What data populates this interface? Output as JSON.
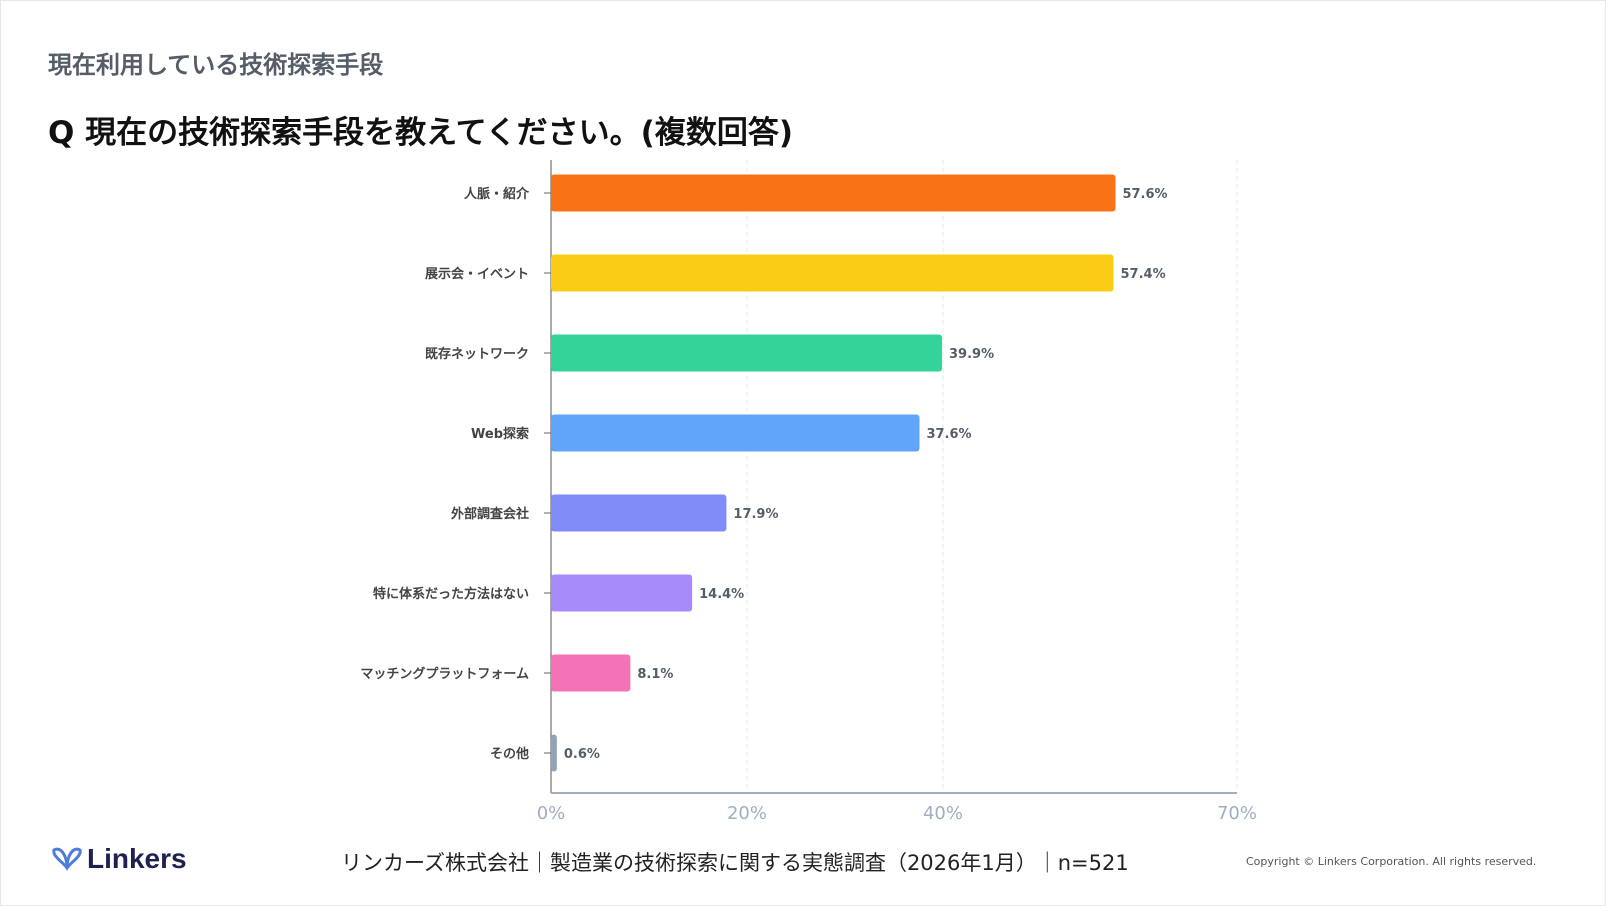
{
  "header": {
    "subtitle": "現在利用している技術探索手段",
    "title": "Q 現在の技術探索手段を教えてください。(複数回答)"
  },
  "chart_data": {
    "type": "bar",
    "orientation": "horizontal",
    "categories": [
      "人脈・紹介",
      "展示会・イベント",
      "既存ネットワーク",
      "Web探索",
      "外部調査会社",
      "特に体系だった方法はない",
      "マッチングプラットフォーム",
      "その他"
    ],
    "values": [
      57.6,
      57.4,
      39.9,
      37.6,
      17.9,
      14.4,
      8.1,
      0.6
    ],
    "value_labels": [
      "57.6%",
      "57.4%",
      "39.9%",
      "37.6%",
      "17.9%",
      "14.4%",
      "8.1%",
      "0.6%"
    ],
    "colors": [
      "#f97316",
      "#facc15",
      "#34d399",
      "#60a5fa",
      "#818cf8",
      "#a78bfa",
      "#f472b6",
      "#94a3b8"
    ],
    "xlim": [
      0,
      70
    ],
    "xticks": [
      0,
      20,
      40,
      70
    ],
    "xtick_labels": [
      "0%",
      "20%",
      "40%",
      "70%"
    ],
    "grid": true,
    "xlabel": "",
    "ylabel": ""
  },
  "footer": {
    "logo": "Linkers",
    "source": "リンカーズ株式会社｜製造業の技術探索に関する実態調査（2026年1月）｜n=521",
    "copyright": "Copyright © Linkers Corporation. All rights reserved."
  }
}
